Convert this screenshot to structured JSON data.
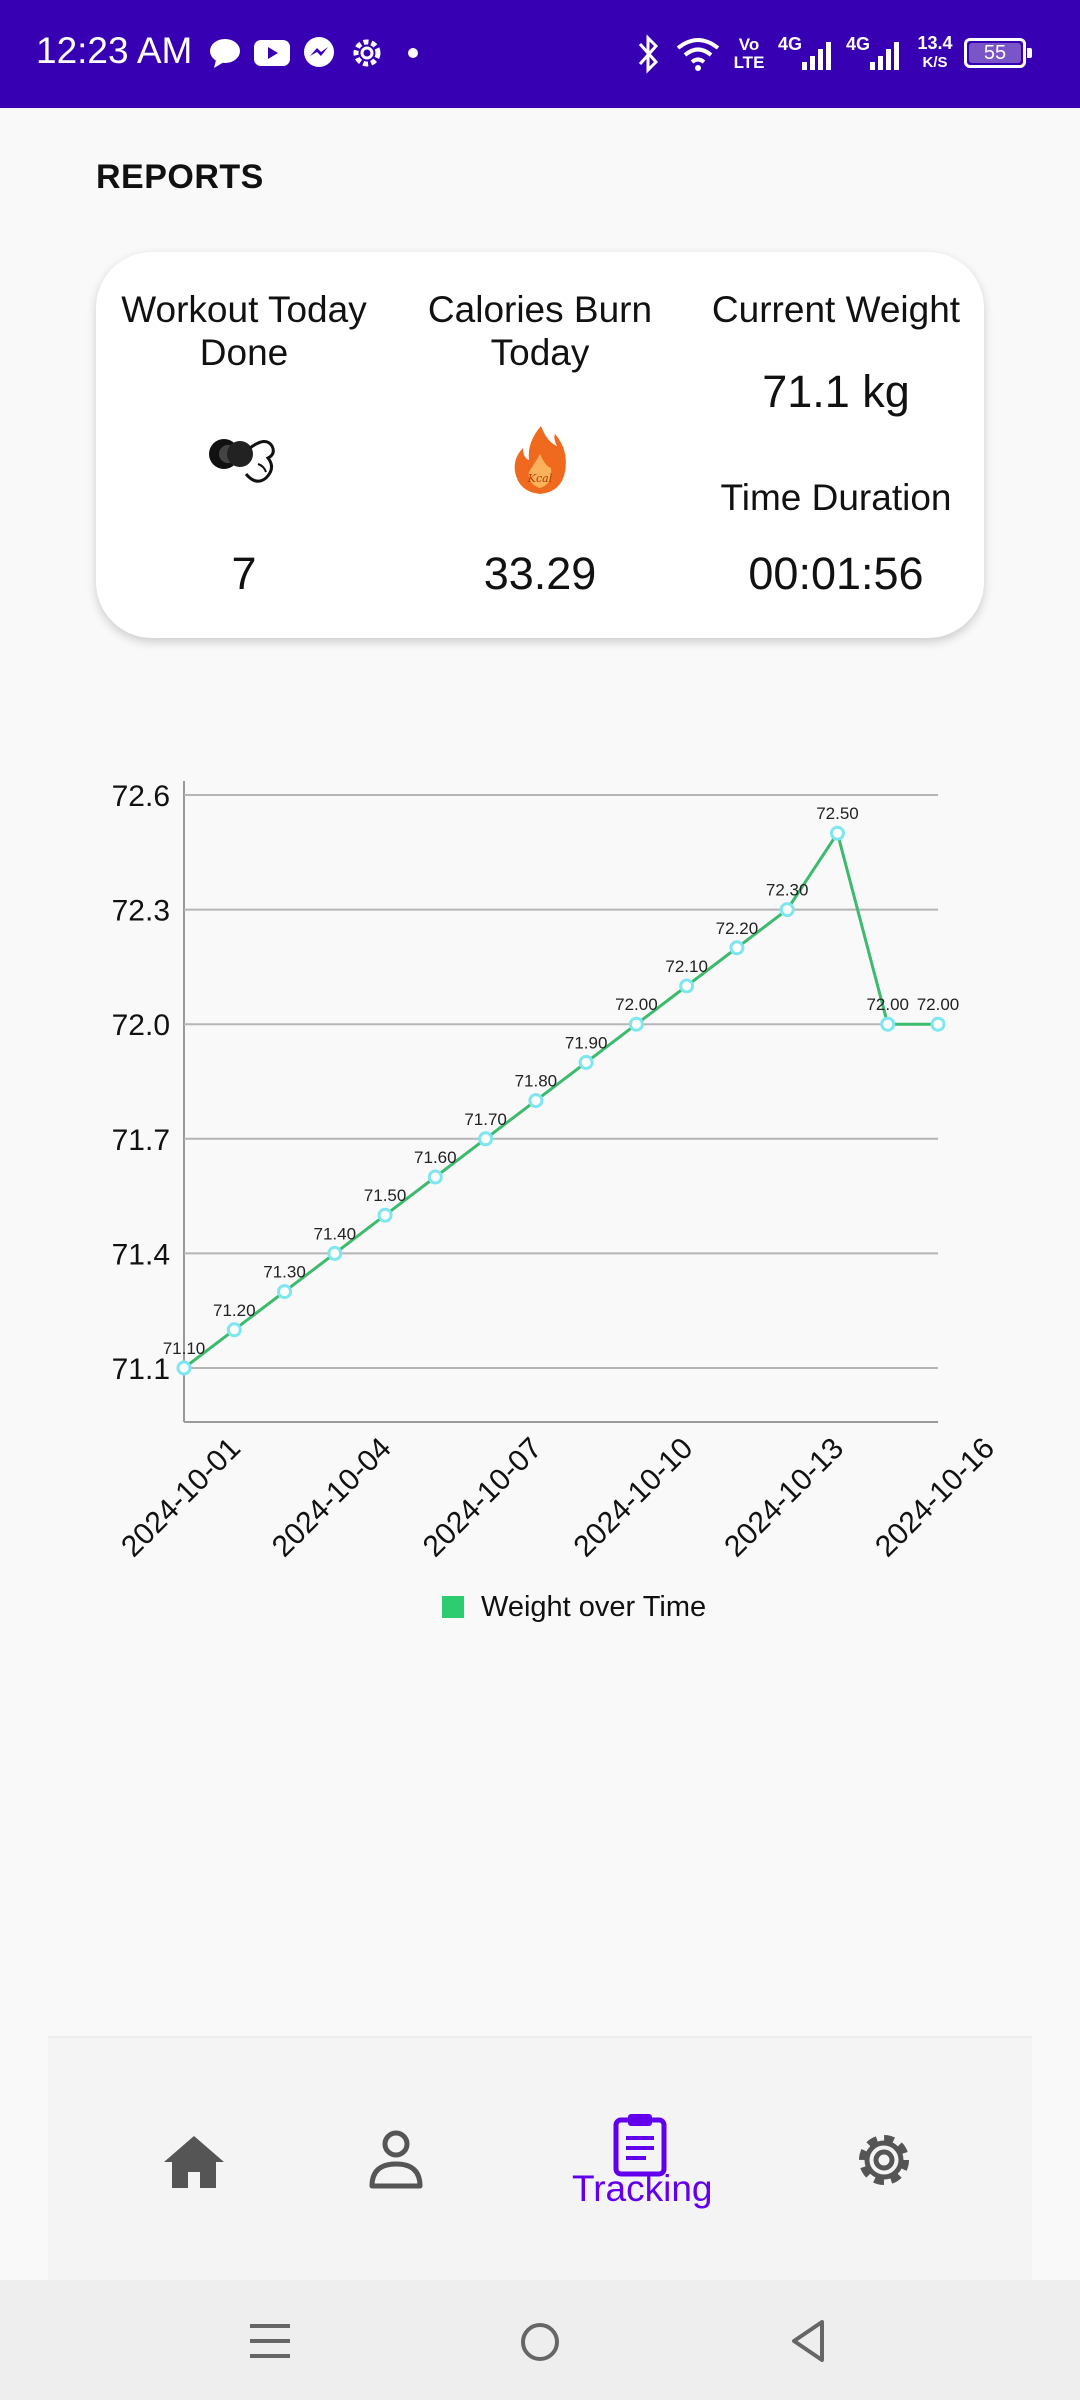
{
  "status_bar": {
    "time": "12:23 AM",
    "network": "Vo LTE",
    "sig1": "4G",
    "sig2": "4G",
    "speed_value": "13.4",
    "speed_unit": "K/S",
    "battery": "55",
    "icons": [
      "chat-bubble-icon",
      "youtube-icon",
      "messenger-icon",
      "settings-gear-icon",
      "dot-icon",
      "bluetooth-icon",
      "wifi-icon",
      "signal-icon",
      "battery-icon"
    ]
  },
  "page": {
    "title": "REPORTS"
  },
  "stats": {
    "workout_label": "Workout Today Done",
    "workout_value": "7",
    "calories_label": "Calories Burn Today",
    "calories_value": "33.29",
    "weight_label": "Current Weight",
    "weight_value": "71.1 kg",
    "duration_label": "Time Duration",
    "duration_value": "00:01:56",
    "icon_workout": "dumbbell-arm-icon",
    "icon_calories": "flame-icon",
    "flame_text": "Kcal"
  },
  "chart_data": {
    "type": "line",
    "x": [
      "2024-10-01",
      "2024-10-02",
      "2024-10-03",
      "2024-10-04",
      "2024-10-05",
      "2024-10-06",
      "2024-10-07",
      "2024-10-08",
      "2024-10-09",
      "2024-10-10",
      "2024-10-11",
      "2024-10-12",
      "2024-10-13",
      "2024-10-14",
      "2024-10-15",
      "2024-10-16"
    ],
    "series": [
      {
        "name": "Weight over Time",
        "values": [
          71.1,
          71.2,
          71.3,
          71.4,
          71.5,
          71.6,
          71.7,
          71.8,
          71.9,
          72.0,
          72.1,
          72.2,
          72.3,
          72.5,
          72.0,
          72.0
        ],
        "color": "#3cba6e",
        "point_color": "#7fe6f0"
      }
    ],
    "point_labels": [
      "71.10",
      "71.20",
      "71.30",
      "71.40",
      "71.50",
      "71.60",
      "71.70",
      "71.80",
      "71.90",
      "72.00",
      "72.10",
      "72.20",
      "72.30",
      "72.50",
      "72.00",
      "72.00"
    ],
    "ylim": [
      71.1,
      72.6
    ],
    "y_ticks": [
      "71.1",
      "71.4",
      "71.7",
      "72.0",
      "72.3",
      "72.6"
    ],
    "x_ticks": [
      "2024-10-01",
      "2024-10-04",
      "2024-10-07",
      "2024-10-10",
      "2024-10-13",
      "2024-10-16"
    ],
    "grid": true,
    "legend_position": "bottom-center"
  },
  "nav": {
    "items": [
      "home-icon",
      "profile-icon",
      "tracking-clipboard-icon",
      "settings-icon"
    ],
    "active_label": "Tracking",
    "active_color": "#6200ee"
  },
  "system_nav": {
    "icons": [
      "recents-menu-icon",
      "home-circle-icon",
      "back-triangle-icon"
    ]
  }
}
